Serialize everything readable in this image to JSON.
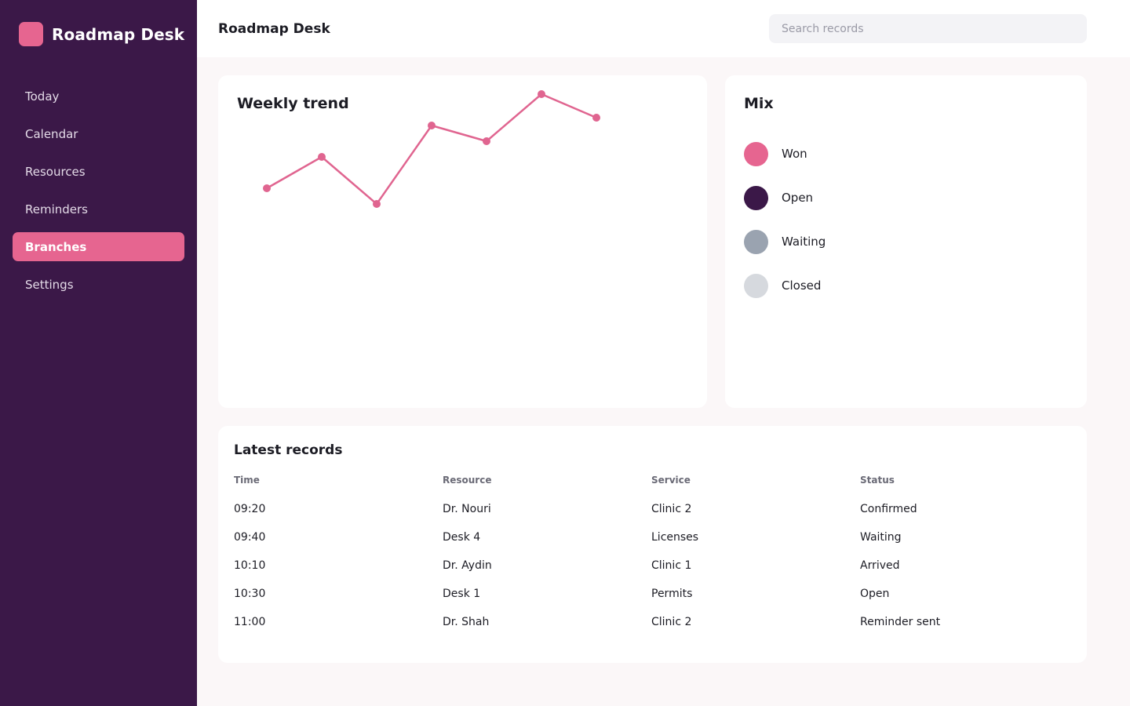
{
  "app": {
    "name": "Roadmap Desk"
  },
  "sidebar": {
    "items": [
      {
        "label": "Today"
      },
      {
        "label": "Calendar"
      },
      {
        "label": "Resources"
      },
      {
        "label": "Reminders"
      },
      {
        "label": "Branches",
        "active": true
      },
      {
        "label": "Settings"
      }
    ]
  },
  "header": {
    "title": "Roadmap Desk"
  },
  "search": {
    "placeholder": "Search records",
    "value": ""
  },
  "colors": {
    "sidebar_bg": "#3b1848",
    "accent": "#e66590",
    "page_bg": "#fbf7f8"
  },
  "trend_card": {
    "title": "Weekly trend"
  },
  "chart_data": {
    "type": "line",
    "series": [
      {
        "values": [
          2,
          4,
          1,
          6,
          5,
          8,
          6.5
        ],
        "color": "#e06590"
      }
    ],
    "grid": false,
    "ylim": [
      0,
      8
    ]
  },
  "mix": {
    "title": "Mix",
    "items": [
      {
        "label": "Won",
        "color": "#e66590"
      },
      {
        "label": "Open",
        "color": "#3b1848"
      },
      {
        "label": "Waiting",
        "color": "#9aa3b0"
      },
      {
        "label": "Closed",
        "color": "#d6d9de"
      }
    ]
  },
  "records": {
    "title": "Latest records",
    "columns": [
      "Time",
      "Resource",
      "Service",
      "Status"
    ],
    "rows": [
      [
        "09:20",
        "Dr. Nouri",
        "Clinic 2",
        "Confirmed"
      ],
      [
        "09:40",
        "Desk 4",
        "Licenses",
        "Waiting"
      ],
      [
        "10:10",
        "Dr. Aydin",
        "Clinic 1",
        "Arrived"
      ],
      [
        "10:30",
        "Desk 1",
        "Permits",
        "Open"
      ],
      [
        "11:00",
        "Dr. Shah",
        "Clinic 2",
        "Reminder sent"
      ]
    ]
  }
}
